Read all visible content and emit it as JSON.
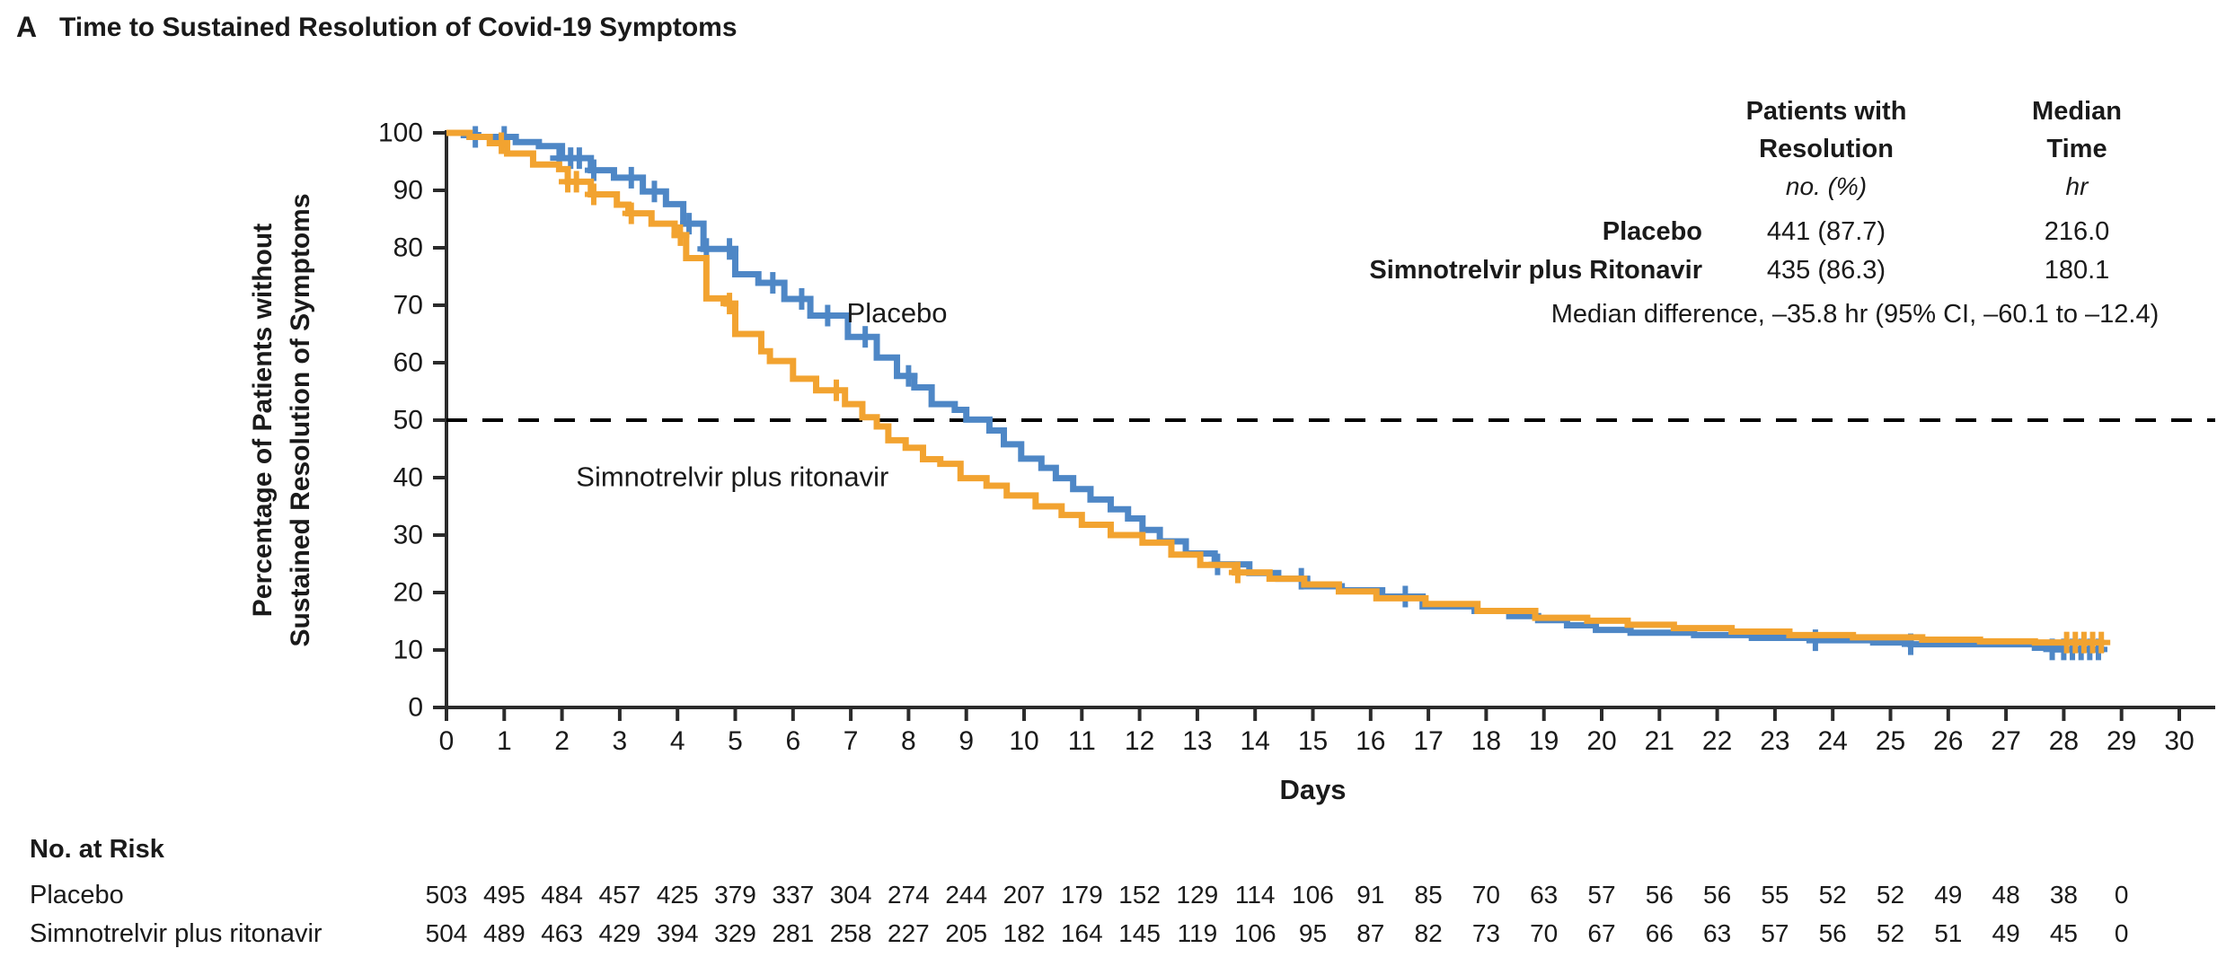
{
  "title": {
    "panel_letter": "A",
    "text": "Time to Sustained Resolution of Covid-19 Symptoms"
  },
  "colors": {
    "placebo": "#4e87c6",
    "simnotrelvir": "#f2a330",
    "text": "#1a1a1a",
    "axis": "#2b2b2b"
  },
  "stats_table": {
    "col1_header_line1": "Patients with",
    "col1_header_line2": "Resolution",
    "col1_units": "no. (%)",
    "col2_header_line1": "Median",
    "col2_header_line2": "Time",
    "col2_units": "hr",
    "rows": [
      {
        "label": "Placebo",
        "resolution": "441 (87.7)",
        "median_time": "216.0"
      },
      {
        "label": "Simnotrelvir plus Ritonavir",
        "resolution": "435 (86.3)",
        "median_time": "180.1"
      }
    ],
    "footnote": "Median difference, –35.8 hr (95% CI, –60.1 to –12.4)"
  },
  "chart_data": {
    "type": "line",
    "subtype": "kaplan-meier-step",
    "title": "Time to Sustained Resolution of Covid-19 Symptoms",
    "xlabel": "Days",
    "ylabel_line1": "Percentage of Patients without",
    "ylabel_line2": "Sustained Resolution of Symptoms",
    "xlim": [
      0,
      30
    ],
    "ylim": [
      0,
      100
    ],
    "x_ticks": [
      0,
      1,
      2,
      3,
      4,
      5,
      6,
      7,
      8,
      9,
      10,
      11,
      12,
      13,
      14,
      15,
      16,
      17,
      18,
      19,
      20,
      21,
      22,
      23,
      24,
      25,
      26,
      27,
      28,
      29,
      30
    ],
    "y_ticks": [
      0,
      10,
      20,
      30,
      40,
      50,
      60,
      70,
      80,
      90,
      100
    ],
    "reference_line": {
      "y": 50,
      "style": "dashed"
    },
    "grid": false,
    "legend_position": "inline-annotations",
    "series": [
      {
        "name": "Placebo",
        "color_key": "placebo",
        "annotation": {
          "text": "Placebo",
          "x": 7.8,
          "y": 67
        },
        "end_day": 28.7,
        "points": [
          [
            0,
            100
          ],
          [
            0.3,
            99.6
          ],
          [
            0.55,
            99.3
          ],
          [
            1.2,
            98.4
          ],
          [
            1.6,
            97.7
          ],
          [
            2.0,
            95.6
          ],
          [
            2.5,
            93.5
          ],
          [
            2.9,
            92.2
          ],
          [
            3.4,
            89.8
          ],
          [
            3.8,
            87.6
          ],
          [
            4.1,
            84.2
          ],
          [
            4.45,
            79.8
          ],
          [
            5.0,
            75.4
          ],
          [
            5.4,
            73.9
          ],
          [
            5.85,
            71.1
          ],
          [
            6.3,
            68.2
          ],
          [
            6.95,
            64.5
          ],
          [
            7.45,
            60.9
          ],
          [
            7.8,
            57.7
          ],
          [
            8.1,
            55.7
          ],
          [
            8.4,
            52.8
          ],
          [
            8.8,
            51.8
          ],
          [
            9.0,
            50.1
          ],
          [
            9.4,
            48.2
          ],
          [
            9.65,
            45.8
          ],
          [
            9.95,
            43.3
          ],
          [
            10.3,
            41.7
          ],
          [
            10.55,
            39.9
          ],
          [
            10.85,
            38.0
          ],
          [
            11.15,
            36.2
          ],
          [
            11.5,
            34.5
          ],
          [
            11.8,
            32.9
          ],
          [
            12.05,
            30.9
          ],
          [
            12.35,
            28.9
          ],
          [
            12.8,
            26.8
          ],
          [
            13.3,
            24.9
          ],
          [
            13.9,
            23.4
          ],
          [
            14.4,
            22.4
          ],
          [
            14.9,
            21.1
          ],
          [
            15.5,
            20.4
          ],
          [
            16.2,
            19.3
          ],
          [
            16.9,
            17.6
          ],
          [
            17.8,
            16.8
          ],
          [
            18.4,
            15.9
          ],
          [
            18.9,
            15.2
          ],
          [
            19.4,
            14.3
          ],
          [
            19.9,
            13.5
          ],
          [
            20.5,
            13.0
          ],
          [
            21.6,
            12.6
          ],
          [
            22.6,
            12.1
          ],
          [
            23.6,
            11.7
          ],
          [
            24.7,
            11.3
          ],
          [
            25.35,
            11.0
          ],
          [
            27.5,
            10.4
          ],
          [
            27.9,
            10.1
          ]
        ],
        "censor_marks": [
          [
            0.5,
            99.3
          ],
          [
            1.0,
            99.3
          ],
          [
            1.95,
            95.6
          ],
          [
            2.15,
            95.6
          ],
          [
            2.3,
            95.6
          ],
          [
            2.55,
            93.5
          ],
          [
            3.2,
            92.2
          ],
          [
            3.6,
            89.8
          ],
          [
            4.2,
            84.2
          ],
          [
            4.5,
            79.8
          ],
          [
            4.9,
            79.8
          ],
          [
            5.65,
            73.9
          ],
          [
            6.15,
            71.1
          ],
          [
            6.6,
            68.2
          ],
          [
            7.25,
            64.5
          ],
          [
            8.0,
            57.7
          ],
          [
            13.35,
            24.9
          ],
          [
            14.8,
            22.4
          ],
          [
            16.6,
            19.3
          ],
          [
            23.7,
            11.7
          ],
          [
            25.35,
            11.0
          ],
          [
            27.8,
            10.1
          ],
          [
            28.0,
            10.1
          ],
          [
            28.15,
            10.1
          ],
          [
            28.3,
            10.1
          ],
          [
            28.45,
            10.1
          ],
          [
            28.6,
            10.1
          ]
        ]
      },
      {
        "name": "Simnotrelvir plus ritonavir",
        "color_key": "simnotrelvir",
        "annotation": {
          "text": "Simnotrelvir plus ritonavir",
          "x": 4.95,
          "y": 38.5
        },
        "end_day": 28.7,
        "points": [
          [
            0,
            100
          ],
          [
            0.4,
            99.3
          ],
          [
            0.75,
            98.2
          ],
          [
            1.05,
            96.4
          ],
          [
            1.5,
            94.5
          ],
          [
            1.95,
            93.7
          ],
          [
            2.1,
            91.5
          ],
          [
            2.5,
            89.3
          ],
          [
            2.95,
            87.5
          ],
          [
            3.15,
            86.0
          ],
          [
            3.55,
            84.2
          ],
          [
            3.95,
            82.2
          ],
          [
            4.15,
            78.2
          ],
          [
            4.5,
            71.2
          ],
          [
            4.85,
            70.3
          ],
          [
            5.0,
            65.0
          ],
          [
            5.45,
            62.0
          ],
          [
            5.6,
            60.3
          ],
          [
            6.0,
            57.2
          ],
          [
            6.4,
            55.2
          ],
          [
            6.9,
            52.8
          ],
          [
            7.2,
            50.5
          ],
          [
            7.45,
            48.9
          ],
          [
            7.65,
            46.5
          ],
          [
            7.95,
            45.2
          ],
          [
            8.25,
            43.2
          ],
          [
            8.55,
            42.4
          ],
          [
            8.9,
            39.9
          ],
          [
            9.35,
            38.6
          ],
          [
            9.7,
            36.9
          ],
          [
            10.2,
            35.0
          ],
          [
            10.65,
            33.5
          ],
          [
            11.0,
            31.8
          ],
          [
            11.5,
            30.0
          ],
          [
            12.05,
            28.7
          ],
          [
            12.55,
            26.6
          ],
          [
            13.05,
            24.8
          ],
          [
            13.65,
            23.5
          ],
          [
            14.25,
            22.4
          ],
          [
            14.85,
            21.4
          ],
          [
            15.45,
            20.2
          ],
          [
            16.1,
            19.0
          ],
          [
            16.95,
            18.0
          ],
          [
            17.85,
            16.8
          ],
          [
            18.85,
            15.6
          ],
          [
            19.75,
            15.1
          ],
          [
            20.45,
            14.4
          ],
          [
            21.25,
            13.8
          ],
          [
            22.25,
            13.2
          ],
          [
            23.25,
            12.6
          ],
          [
            24.35,
            12.2
          ],
          [
            25.55,
            11.8
          ],
          [
            26.55,
            11.5
          ],
          [
            27.5,
            11.3
          ]
        ],
        "censor_marks": [
          [
            0.95,
            98.2
          ],
          [
            2.1,
            91.5
          ],
          [
            2.25,
            91.5
          ],
          [
            2.55,
            89.3
          ],
          [
            3.2,
            86.0
          ],
          [
            4.05,
            82.2
          ],
          [
            4.9,
            70.3
          ],
          [
            6.75,
            55.2
          ],
          [
            13.7,
            23.5
          ],
          [
            28.05,
            11.3
          ],
          [
            28.2,
            11.3
          ],
          [
            28.35,
            11.3
          ],
          [
            28.5,
            11.3
          ],
          [
            28.65,
            11.3
          ]
        ]
      }
    ]
  },
  "no_at_risk": {
    "title": "No. at Risk",
    "days": [
      0,
      1,
      2,
      3,
      4,
      5,
      6,
      7,
      8,
      9,
      10,
      11,
      12,
      13,
      14,
      15,
      16,
      17,
      18,
      19,
      20,
      21,
      22,
      23,
      24,
      25,
      26,
      27,
      28,
      29
    ],
    "rows": [
      {
        "label": "Placebo",
        "values": [
          503,
          495,
          484,
          457,
          425,
          379,
          337,
          304,
          274,
          244,
          207,
          179,
          152,
          129,
          114,
          106,
          91,
          85,
          70,
          63,
          57,
          56,
          56,
          55,
          52,
          52,
          49,
          48,
          38,
          0
        ]
      },
      {
        "label": "Simnotrelvir plus ritonavir",
        "values": [
          504,
          489,
          463,
          429,
          394,
          329,
          281,
          258,
          227,
          205,
          182,
          164,
          145,
          119,
          106,
          95,
          87,
          82,
          73,
          70,
          67,
          66,
          63,
          57,
          56,
          52,
          51,
          49,
          45,
          0
        ]
      }
    ]
  }
}
